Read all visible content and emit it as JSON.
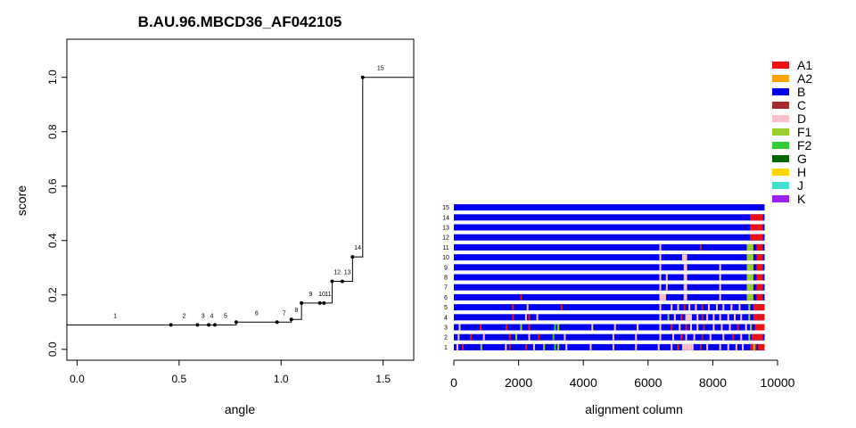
{
  "chart_data": [
    {
      "type": "line",
      "title": "B.AU.96.MBCD36_AF042105",
      "xlabel": "angle",
      "ylabel": "score",
      "xlim": [
        -0.05,
        1.65
      ],
      "ylim": [
        -0.04,
        1.14
      ],
      "x_ticks": [
        "0.0",
        "0.5",
        "1.0",
        "1.5"
      ],
      "x_tick_values": [
        0,
        0.5,
        1.0,
        1.5
      ],
      "y_ticks": [
        "0.0",
        "0.2",
        "0.4",
        "0.6",
        "0.8",
        "1.0"
      ],
      "y_tick_values": [
        0,
        0.2,
        0.4,
        0.6,
        0.8,
        1.0
      ],
      "step": true,
      "points": [
        {
          "label": "1",
          "x": 0.0,
          "y": 0.09
        },
        {
          "label": "2",
          "x": 0.46,
          "y": 0.09
        },
        {
          "label": "3",
          "x": 0.59,
          "y": 0.09
        },
        {
          "label": "4",
          "x": 0.645,
          "y": 0.09
        },
        {
          "label": "5",
          "x": 0.675,
          "y": 0.09
        },
        {
          "label": "6",
          "x": 0.78,
          "y": 0.1
        },
        {
          "label": "7",
          "x": 0.98,
          "y": 0.1
        },
        {
          "label": "8",
          "x": 1.05,
          "y": 0.11
        },
        {
          "label": "9",
          "x": 1.1,
          "y": 0.17
        },
        {
          "label": "10",
          "x": 1.19,
          "y": 0.17
        },
        {
          "label": "11",
          "x": 1.21,
          "y": 0.17
        },
        {
          "label": "12",
          "x": 1.25,
          "y": 0.25
        },
        {
          "label": "13",
          "x": 1.3,
          "y": 0.25
        },
        {
          "label": "14",
          "x": 1.35,
          "y": 0.34
        },
        {
          "label": "15",
          "x": 1.4,
          "y": 1.0
        }
      ]
    },
    {
      "type": "bar",
      "orientation": "horizontal-segments",
      "xlabel": "alignment column",
      "xlim": [
        0,
        10000
      ],
      "x_ticks": [
        "0",
        "2000",
        "4000",
        "6000",
        "8000",
        "10000"
      ],
      "x_tick_values": [
        0,
        2000,
        4000,
        6000,
        8000,
        10000
      ],
      "alignment_length": 9600,
      "base_subtype": "B",
      "legend": [
        {
          "name": "A1",
          "color": "#ee1111"
        },
        {
          "name": "A2",
          "color": "#ffa500"
        },
        {
          "name": "B",
          "color": "#0000ee"
        },
        {
          "name": "C",
          "color": "#a52a2a"
        },
        {
          "name": "D",
          "color": "#ffc0cb"
        },
        {
          "name": "F1",
          "color": "#9acd32"
        },
        {
          "name": "F2",
          "color": "#32cd32"
        },
        {
          "name": "G",
          "color": "#006400"
        },
        {
          "name": "H",
          "color": "#ffd700"
        },
        {
          "name": "J",
          "color": "#40e0d0"
        },
        {
          "name": "K",
          "color": "#a020f0"
        }
      ],
      "rows": [
        {
          "label": "1",
          "segments": [
            [
              80,
              "D"
            ],
            [
              250,
              "A1"
            ],
            [
              820,
              "F1"
            ],
            [
              1580,
              "D"
            ],
            [
              1700,
              "C"
            ],
            [
              2200,
              "A1"
            ],
            [
              2450,
              "D"
            ],
            [
              2760,
              "F1"
            ],
            [
              3100,
              "F2"
            ],
            [
              3200,
              "F1"
            ],
            [
              3450,
              "D"
            ],
            [
              4200,
              "D"
            ],
            [
              4900,
              "D"
            ],
            [
              5600,
              "D"
            ],
            [
              6300,
              "D"
            ],
            [
              6700,
              "D"
            ],
            [
              6900,
              "A1"
            ],
            [
              7050,
              "D"
            ],
            [
              7200,
              "D"
            ],
            [
              7350,
              "D"
            ],
            [
              7600,
              "C"
            ],
            [
              7800,
              "D"
            ],
            [
              8200,
              "D"
            ],
            [
              8450,
              "D"
            ],
            [
              8700,
              "D"
            ],
            [
              8900,
              "D"
            ],
            [
              9150,
              "A1"
            ],
            [
              9250,
              "F1"
            ],
            [
              9400,
              "A1"
            ]
          ]
        },
        {
          "label": "2",
          "segments": [
            [
              120,
              "D"
            ],
            [
              500,
              "A1"
            ],
            [
              900,
              "D"
            ],
            [
              1700,
              "A1"
            ],
            [
              1900,
              "F1"
            ],
            [
              2300,
              "D"
            ],
            [
              2600,
              "A1"
            ],
            [
              3050,
              "F2"
            ],
            [
              3400,
              "D"
            ],
            [
              4900,
              "D"
            ],
            [
              5600,
              "D"
            ],
            [
              6350,
              "D"
            ],
            [
              6750,
              "D"
            ],
            [
              7000,
              "A1"
            ],
            [
              7150,
              "D"
            ],
            [
              7400,
              "D"
            ],
            [
              7650,
              "C"
            ],
            [
              7900,
              "D"
            ],
            [
              8300,
              "D"
            ],
            [
              8600,
              "A1"
            ],
            [
              8850,
              "D"
            ],
            [
              9100,
              "F1"
            ],
            [
              9200,
              "A1"
            ],
            [
              9350,
              "A1"
            ]
          ]
        },
        {
          "label": "3",
          "segments": [
            [
              150,
              "D"
            ],
            [
              800,
              "A1"
            ],
            [
              1600,
              "A1"
            ],
            [
              2050,
              "F1"
            ],
            [
              2300,
              "A1"
            ],
            [
              3100,
              "F2"
            ],
            [
              3200,
              "F1"
            ],
            [
              4250,
              "D"
            ],
            [
              4950,
              "D"
            ],
            [
              5650,
              "D"
            ],
            [
              6350,
              "D"
            ],
            [
              6700,
              "A1"
            ],
            [
              6950,
              "D"
            ],
            [
              7150,
              "A1"
            ],
            [
              7300,
              "D"
            ],
            [
              7500,
              "D"
            ],
            [
              7700,
              "C"
            ],
            [
              8000,
              "D"
            ],
            [
              8250,
              "D"
            ],
            [
              8500,
              "D"
            ],
            [
              8750,
              "A1"
            ],
            [
              9000,
              "D"
            ],
            [
              9150,
              "F1"
            ],
            [
              9300,
              "A1"
            ],
            [
              9450,
              "A1"
            ]
          ]
        },
        {
          "label": "4",
          "segments": [
            [
              1800,
              "A1"
            ],
            [
              2200,
              "D"
            ],
            [
              2300,
              "A1"
            ],
            [
              2550,
              "D"
            ],
            [
              6350,
              "D"
            ],
            [
              6600,
              "F1"
            ],
            [
              6800,
              "D"
            ],
            [
              7000,
              "A1"
            ],
            [
              7150,
              "D"
            ],
            [
              7300,
              "D"
            ],
            [
              7500,
              "D"
            ],
            [
              7650,
              "C"
            ],
            [
              7800,
              "D"
            ],
            [
              8000,
              "D"
            ],
            [
              8200,
              "D"
            ],
            [
              8450,
              "D"
            ],
            [
              8650,
              "D"
            ],
            [
              8850,
              "D"
            ],
            [
              9100,
              "F1"
            ],
            [
              9250,
              "A1"
            ],
            [
              9400,
              "A1"
            ]
          ]
        },
        {
          "label": "5",
          "segments": [
            [
              1800,
              "A1"
            ],
            [
              2250,
              "D"
            ],
            [
              3300,
              "A1"
            ],
            [
              6350,
              "D"
            ],
            [
              6700,
              "D"
            ],
            [
              6900,
              "D"
            ],
            [
              7100,
              "A1"
            ],
            [
              7250,
              "D"
            ],
            [
              7450,
              "D"
            ],
            [
              7650,
              "C"
            ],
            [
              7850,
              "D"
            ],
            [
              8100,
              "D"
            ],
            [
              8300,
              "D"
            ],
            [
              8550,
              "D"
            ],
            [
              8800,
              "D"
            ],
            [
              9100,
              "F1"
            ],
            [
              9250,
              "A1"
            ],
            [
              9400,
              "A1"
            ]
          ]
        },
        {
          "label": "6",
          "segments": [
            [
              2050,
              "A1"
            ],
            [
              6350,
              "D"
            ],
            [
              6500,
              "D"
            ],
            [
              7100,
              "D"
            ],
            [
              7150,
              "D"
            ],
            [
              8200,
              "D"
            ],
            [
              9050,
              "F1"
            ],
            [
              9200,
              "F1"
            ],
            [
              9350,
              "A1"
            ]
          ]
        },
        {
          "label": "7",
          "segments": [
            [
              6350,
              "D"
            ],
            [
              6550,
              "D"
            ],
            [
              7100,
              "D"
            ],
            [
              7150,
              "D"
            ],
            [
              8200,
              "D"
            ],
            [
              9050,
              "F1"
            ],
            [
              9200,
              "F1"
            ],
            [
              9350,
              "A1"
            ]
          ]
        },
        {
          "label": "8",
          "segments": [
            [
              6350,
              "D"
            ],
            [
              6550,
              "D"
            ],
            [
              7100,
              "D"
            ],
            [
              7150,
              "D"
            ],
            [
              8200,
              "D"
            ],
            [
              9050,
              "F1"
            ],
            [
              9200,
              "F1"
            ],
            [
              9350,
              "A1"
            ]
          ]
        },
        {
          "label": "9",
          "segments": [
            [
              6350,
              "D"
            ],
            [
              7100,
              "D"
            ],
            [
              7150,
              "D"
            ],
            [
              8200,
              "D"
            ],
            [
              9050,
              "F1"
            ],
            [
              9200,
              "F1"
            ],
            [
              9350,
              "A1"
            ]
          ]
        },
        {
          "label": "10",
          "segments": [
            [
              6350,
              "D"
            ],
            [
              7050,
              "D"
            ],
            [
              7150,
              "D"
            ],
            [
              9050,
              "F1"
            ],
            [
              9200,
              "F1"
            ],
            [
              9350,
              "A1"
            ]
          ]
        },
        {
          "label": "11",
          "segments": [
            [
              6350,
              "D"
            ],
            [
              7600,
              "C"
            ],
            [
              9050,
              "F1"
            ],
            [
              9200,
              "F1"
            ],
            [
              9350,
              "A1"
            ]
          ]
        },
        {
          "label": "12",
          "segments": [
            [
              9150,
              "A1"
            ],
            [
              9350,
              "A1"
            ]
          ]
        },
        {
          "label": "13",
          "segments": [
            [
              9150,
              "A1"
            ],
            [
              9350,
              "A1"
            ]
          ]
        },
        {
          "label": "14",
          "segments": [
            [
              9150,
              "A1"
            ],
            [
              9350,
              "A1"
            ]
          ]
        },
        {
          "label": "15",
          "segments": []
        }
      ]
    }
  ]
}
